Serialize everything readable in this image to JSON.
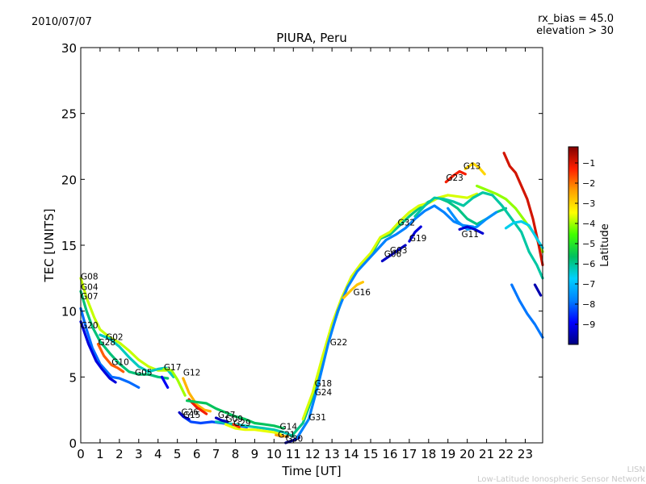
{
  "header": {
    "date": "2010/07/07",
    "rx_bias": "rx_bias = 45.0",
    "elevation": "elevation > 30"
  },
  "footer": {
    "line1": "LISN",
    "line2": "Low-Latitude Ionospheric Sensor Network"
  },
  "colors": {
    "scale": [
      "#000080",
      "#0000ff",
      "#0080ff",
      "#00d0ff",
      "#00c060",
      "#40ff00",
      "#ffff00",
      "#ffa000",
      "#ff2000",
      "#800000"
    ]
  },
  "chart_data": {
    "type": "line",
    "title": "PIURA, Peru",
    "xlabel": "Time [UT]",
    "ylabel": "TEC [UNITS]",
    "xlim": [
      0,
      23.9
    ],
    "ylim": [
      0,
      30
    ],
    "xticks": [
      "0",
      "1",
      "2",
      "3",
      "4",
      "5",
      "6",
      "7",
      "8",
      "9",
      "10",
      "11",
      "12",
      "13",
      "14",
      "15",
      "16",
      "17",
      "18",
      "19",
      "20",
      "21",
      "22",
      "23"
    ],
    "yticks": [
      "0",
      "5",
      "10",
      "15",
      "20",
      "25",
      "30"
    ],
    "colorbar": {
      "label": "Latitude",
      "min": -10,
      "max": -0.2,
      "ticks": [
        "-9",
        "-8",
        "-7",
        "-6",
        "-5",
        "-4",
        "-3",
        "-2",
        "-1"
      ]
    },
    "satellite_labels": [
      {
        "name": "G08",
        "x": 0.0,
        "y": 12.4
      },
      {
        "name": "G04",
        "x": 0.0,
        "y": 11.6
      },
      {
        "name": "G07",
        "x": 0.0,
        "y": 10.9
      },
      {
        "name": "G20",
        "x": 0.0,
        "y": 8.7
      },
      {
        "name": "G02",
        "x": 1.3,
        "y": 7.8
      },
      {
        "name": "G28",
        "x": 0.9,
        "y": 7.4
      },
      {
        "name": "G10",
        "x": 1.6,
        "y": 5.9
      },
      {
        "name": "G05",
        "x": 2.8,
        "y": 5.1
      },
      {
        "name": "G17",
        "x": 4.3,
        "y": 5.5
      },
      {
        "name": "G12",
        "x": 5.3,
        "y": 5.1
      },
      {
        "name": "G26",
        "x": 5.2,
        "y": 2.1
      },
      {
        "name": "G15",
        "x": 5.3,
        "y": 1.9
      },
      {
        "name": "G27",
        "x": 7.1,
        "y": 1.9
      },
      {
        "name": "G09",
        "x": 7.5,
        "y": 1.6
      },
      {
        "name": "G29",
        "x": 7.9,
        "y": 1.3
      },
      {
        "name": "G14",
        "x": 10.3,
        "y": 1.0
      },
      {
        "name": "G21",
        "x": 10.2,
        "y": 0.4
      },
      {
        "name": "G30",
        "x": 10.6,
        "y": 0.1
      },
      {
        "name": "G31",
        "x": 11.8,
        "y": 1.7
      },
      {
        "name": "G18",
        "x": 12.1,
        "y": 4.3
      },
      {
        "name": "G24",
        "x": 12.1,
        "y": 3.6
      },
      {
        "name": "G22",
        "x": 12.9,
        "y": 7.4
      },
      {
        "name": "G16",
        "x": 14.1,
        "y": 11.2
      },
      {
        "name": "G03",
        "x": 16.0,
        "y": 14.4
      },
      {
        "name": "G06",
        "x": 15.7,
        "y": 14.1
      },
      {
        "name": "G19",
        "x": 17.0,
        "y": 15.3
      },
      {
        "name": "G32",
        "x": 16.4,
        "y": 16.5
      },
      {
        "name": "G23",
        "x": 18.9,
        "y": 19.9
      },
      {
        "name": "G13",
        "x": 19.8,
        "y": 20.8
      },
      {
        "name": "G11",
        "x": 19.7,
        "y": 15.6
      }
    ],
    "series": [
      {
        "name": "early-green-a",
        "lat": -5.8,
        "x": [
          0,
          0.3,
          0.6,
          1.0,
          1.5,
          2.0,
          2.5,
          3.0,
          3.5,
          4.0,
          4.5
        ],
        "y": [
          11.5,
          10,
          8.8,
          7.7,
          6.8,
          6.0,
          5.4,
          5.2,
          5.2,
          5.0,
          4.9
        ]
      },
      {
        "name": "early-yellow",
        "lat": -3.8,
        "x": [
          0,
          0.3,
          0.7,
          1.0,
          1.5,
          2.0,
          2.5,
          3.0,
          3.5,
          4.0,
          4.5
        ],
        "y": [
          12.5,
          11,
          9.5,
          8.6,
          8.0,
          7.6,
          7.0,
          6.3,
          5.8,
          5.5,
          5.5
        ]
      },
      {
        "name": "early-green-b",
        "lat": -6.3,
        "x": [
          1.0,
          1.5,
          2.0,
          2.5,
          3.0,
          3.5,
          4.0,
          4.4,
          4.8
        ],
        "y": [
          8.2,
          7.9,
          7.3,
          6.5,
          5.8,
          5.4,
          5.6,
          5.7,
          5.0
        ]
      },
      {
        "name": "early-cyan",
        "lat": -8.0,
        "x": [
          0,
          0.3,
          0.6,
          1.0,
          1.3,
          1.6,
          2.0,
          2.5,
          3.0
        ],
        "y": [
          10.2,
          8.6,
          7.2,
          6.0,
          5.5,
          5.0,
          4.9,
          4.6,
          4.2
        ]
      },
      {
        "name": "early-blue",
        "lat": -9.2,
        "x": [
          0,
          0.4,
          0.8,
          1.1,
          1.5,
          1.8
        ],
        "y": [
          9.2,
          7.5,
          6.2,
          5.6,
          4.9,
          4.6
        ]
      },
      {
        "name": "early-red",
        "lat": -1.8,
        "x": [
          0.9,
          1.2,
          1.6,
          1.9,
          2.2
        ],
        "y": [
          7.5,
          6.6,
          5.9,
          5.7,
          5.4
        ]
      },
      {
        "name": "g12-orange",
        "lat": -2.6,
        "x": [
          5.3,
          5.6,
          6.0,
          6.4,
          6.7
        ],
        "y": [
          4.9,
          3.8,
          2.9,
          2.5,
          2.4
        ]
      },
      {
        "name": "g12-red",
        "lat": -1.2,
        "x": [
          5.6,
          6.0,
          6.5
        ],
        "y": [
          3.3,
          2.7,
          2.2
        ]
      },
      {
        "name": "g17-yellow",
        "lat": -4.0,
        "x": [
          4.3,
          4.7,
          5.0,
          5.4
        ],
        "y": [
          5.6,
          5.5,
          4.8,
          3.6
        ]
      },
      {
        "name": "g17-blue",
        "lat": -9.0,
        "x": [
          4.2,
          4.5
        ],
        "y": [
          5.0,
          4.2
        ]
      },
      {
        "name": "g15-cyan",
        "lat": -8.3,
        "x": [
          5.3,
          5.7,
          6.2,
          6.8,
          7.3,
          7.8,
          8.2,
          8.6
        ],
        "y": [
          2.0,
          1.6,
          1.5,
          1.6,
          1.5,
          1.4,
          1.3,
          1.2
        ]
      },
      {
        "name": "g15-blue",
        "lat": -9.4,
        "x": [
          5.1,
          5.3,
          5.6
        ],
        "y": [
          2.3,
          2.0,
          1.8
        ]
      },
      {
        "name": "mid-green-a",
        "lat": -5.6,
        "x": [
          5.5,
          6.0,
          6.5,
          7.0,
          7.5,
          8.0,
          8.5,
          9.0,
          9.5,
          10.0,
          10.5
        ],
        "y": [
          3.2,
          3.1,
          3.0,
          2.6,
          2.3,
          2.0,
          1.8,
          1.5,
          1.4,
          1.3,
          1.1
        ]
      },
      {
        "name": "mid-green-b",
        "lat": -6.2,
        "x": [
          7.0,
          7.5,
          8.0,
          8.5,
          9.0,
          9.5,
          10.0,
          10.5,
          11.0
        ],
        "y": [
          1.6,
          1.5,
          1.4,
          1.3,
          1.2,
          1.1,
          1.0,
          0.8,
          0.5
        ]
      },
      {
        "name": "mid-yellow",
        "lat": -3.6,
        "x": [
          7.5,
          8.0,
          8.5,
          9.0,
          9.5,
          10.0,
          10.4
        ],
        "y": [
          1.4,
          1.1,
          1.0,
          1.0,
          0.9,
          0.8,
          0.6
        ]
      },
      {
        "name": "g27-blue",
        "lat": -9.5,
        "x": [
          7.0,
          7.3,
          7.6
        ],
        "y": [
          1.9,
          1.7,
          1.6
        ]
      },
      {
        "name": "g29-red",
        "lat": -1.4,
        "x": [
          7.9,
          8.2
        ],
        "y": [
          1.4,
          1.2
        ]
      },
      {
        "name": "g21-orange",
        "lat": -2.4,
        "x": [
          10.1,
          10.4,
          10.7
        ],
        "y": [
          0.6,
          0.5,
          0.5
        ]
      },
      {
        "name": "g30-navy",
        "lat": -9.8,
        "x": [
          10.6,
          11.0,
          11.3
        ],
        "y": [
          0.0,
          0.2,
          0.4
        ]
      },
      {
        "name": "rise-green",
        "lat": -5.9,
        "x": [
          10.9,
          11.5,
          12.0,
          12.5,
          13.0,
          13.5,
          14.0,
          14.5,
          15.0,
          15.5,
          16.0,
          16.5,
          17.0,
          17.5,
          18.0,
          18.5,
          19.0,
          19.5,
          20.0,
          20.5,
          21.0,
          21.5,
          22.0
        ],
        "y": [
          0.5,
          1.5,
          3.5,
          6.0,
          8.6,
          10.8,
          12.5,
          13.5,
          14.2,
          15.5,
          15.8,
          16.5,
          17.2,
          17.8,
          18.3,
          18.6,
          18.3,
          17.8,
          17.0,
          16.6,
          17.0,
          17.5,
          17.8
        ]
      },
      {
        "name": "rise-yellow",
        "lat": -3.7,
        "x": [
          11.5,
          12.0,
          12.5,
          13.0,
          13.5,
          14.0,
          14.5,
          15.0,
          15.5,
          16.0,
          16.5,
          17.0,
          17.5,
          18.0,
          18.5,
          19.0,
          19.5,
          20.0,
          20.5
        ],
        "y": [
          1.8,
          3.8,
          6.5,
          9.0,
          11.0,
          12.6,
          13.6,
          14.4,
          15.6,
          16.0,
          16.8,
          17.5,
          18.0,
          18.2,
          18.6,
          18.8,
          18.7,
          18.6,
          18.9
        ]
      },
      {
        "name": "rise-cyan",
        "lat": -7.8,
        "x": [
          11.2,
          11.8,
          12.3,
          12.8,
          13.3,
          13.8,
          14.3,
          14.8,
          15.3,
          15.8,
          16.3,
          16.8,
          17.3,
          17.8,
          18.3,
          18.8,
          19.3,
          19.8,
          20.3
        ],
        "y": [
          0.4,
          1.8,
          4.5,
          7.5,
          10.0,
          11.8,
          13.0,
          13.8,
          14.6,
          15.4,
          15.8,
          16.3,
          17.0,
          17.6,
          18.0,
          17.5,
          16.8,
          16.5,
          16.4
        ]
      },
      {
        "name": "g16-orange",
        "lat": -2.8,
        "x": [
          13.6,
          14.0,
          14.3,
          14.6
        ],
        "y": [
          11.0,
          11.6,
          12.0,
          12.2
        ]
      },
      {
        "name": "g03-blue",
        "lat": -9.4,
        "x": [
          15.6,
          16.0,
          16.4,
          16.8
        ],
        "y": [
          13.8,
          14.2,
          14.6,
          15.0
        ]
      },
      {
        "name": "g19-blue",
        "lat": -9.2,
        "x": [
          17.0,
          17.3,
          17.6
        ],
        "y": [
          15.3,
          16.0,
          16.4
        ]
      },
      {
        "name": "late-green",
        "lat": -6.1,
        "x": [
          17.3,
          17.8,
          18.3,
          18.8,
          19.3,
          19.8,
          20.3,
          20.8,
          21.3,
          21.8,
          22.3,
          22.8,
          23.2,
          23.6,
          23.9
        ],
        "y": [
          17.2,
          18.0,
          18.6,
          18.5,
          18.3,
          18.0,
          18.6,
          19.0,
          18.8,
          18.0,
          17.0,
          16.0,
          14.5,
          13.5,
          12.5
        ]
      },
      {
        "name": "late-yellow",
        "lat": -4.1,
        "x": [
          20.5,
          21.0,
          21.5,
          22.0,
          22.5,
          23.0,
          23.5,
          23.9
        ],
        "y": [
          19.5,
          19.2,
          18.9,
          18.5,
          17.8,
          16.8,
          15.8,
          14.5
        ]
      },
      {
        "name": "late-cyan",
        "lat": -7.6,
        "x": [
          19.0,
          19.5,
          20.0,
          20.5,
          21.0,
          21.5
        ],
        "y": [
          17.8,
          16.8,
          16.2,
          16.4,
          17.0,
          17.5
        ]
      },
      {
        "name": "g11-blue",
        "lat": -9.3,
        "x": [
          19.6,
          20.0,
          20.4,
          20.8
        ],
        "y": [
          16.2,
          16.4,
          16.2,
          15.9
        ]
      },
      {
        "name": "g23-red",
        "lat": -1.2,
        "x": [
          18.9,
          19.3,
          19.6,
          19.9
        ],
        "y": [
          19.8,
          20.3,
          20.6,
          20.4
        ]
      },
      {
        "name": "g13-orange",
        "lat": -3.0,
        "x": [
          19.9,
          20.3,
          20.6,
          20.9
        ],
        "y": [
          20.8,
          21.2,
          20.9,
          20.4
        ]
      },
      {
        "name": "late-red",
        "lat": -0.9,
        "x": [
          21.9,
          22.2,
          22.5,
          22.8,
          23.1,
          23.4,
          23.7,
          23.9
        ],
        "y": [
          22.0,
          21.0,
          20.5,
          19.5,
          18.5,
          17.0,
          15.0,
          13.5
        ]
      },
      {
        "name": "late-green-b",
        "lat": -6.6,
        "x": [
          22.0,
          22.4,
          22.8,
          23.2,
          23.6,
          23.9
        ],
        "y": [
          16.3,
          16.7,
          16.8,
          16.5,
          15.5,
          14.8
        ]
      },
      {
        "name": "late-teal",
        "lat": -7.9,
        "x": [
          22.3,
          22.7,
          23.1,
          23.5,
          23.9
        ],
        "y": [
          12.0,
          10.8,
          9.8,
          9.0,
          8.0
        ]
      },
      {
        "name": "late-navy",
        "lat": -9.6,
        "x": [
          23.5,
          23.8
        ],
        "y": [
          12.0,
          11.2
        ]
      }
    ]
  }
}
